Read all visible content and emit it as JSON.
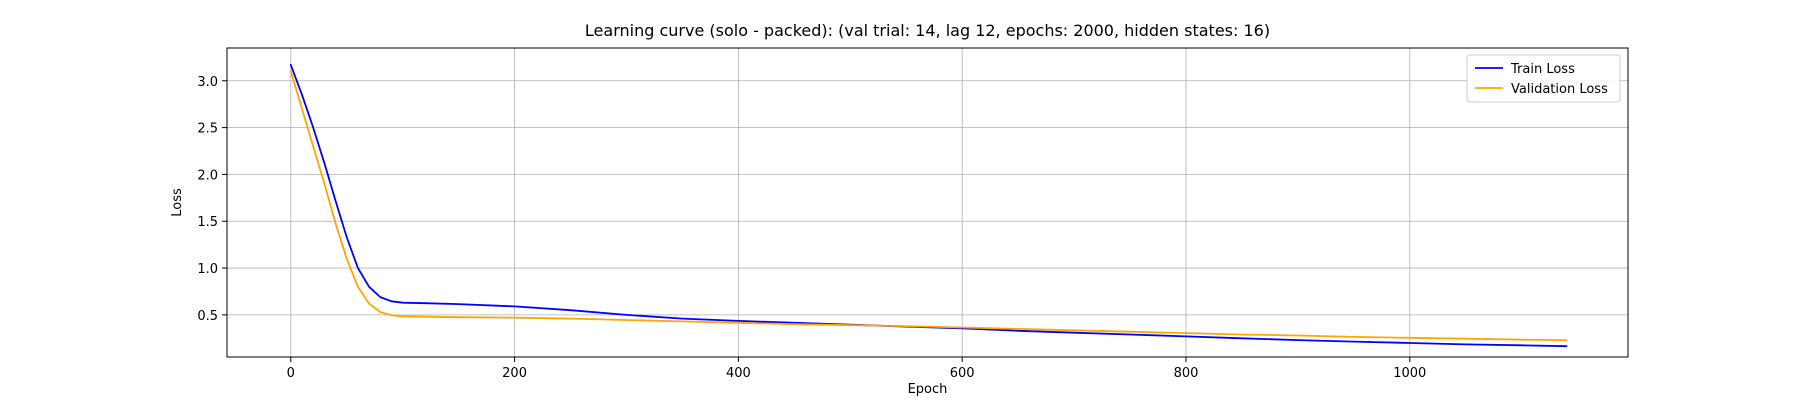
{
  "chart_data": {
    "type": "line",
    "title": "Learning curve (solo - packed): (val trial: 14, lag 12, epochs: 2000, hidden states: 16)",
    "xlabel": "Epoch",
    "ylabel": "Loss",
    "xlim": [
      -57,
      1195
    ],
    "ylim": [
      0.05,
      3.35
    ],
    "xticks": [
      0,
      200,
      400,
      600,
      800,
      1000
    ],
    "yticks": [
      0.5,
      1.0,
      1.5,
      2.0,
      2.5,
      3.0
    ],
    "xtick_labels": [
      "0",
      "200",
      "400",
      "600",
      "800",
      "1000"
    ],
    "ytick_labels": [
      "0.5",
      "1.0",
      "1.5",
      "2.0",
      "2.5",
      "3.0"
    ],
    "grid": true,
    "legend_position": "top-right",
    "series": [
      {
        "name": "Train Loss",
        "color": "#0000ff",
        "x": [
          0,
          10,
          20,
          30,
          40,
          50,
          60,
          70,
          80,
          90,
          100,
          120,
          150,
          200,
          250,
          300,
          350,
          400,
          450,
          500,
          550,
          600,
          650,
          700,
          750,
          800,
          850,
          900,
          950,
          1000,
          1050,
          1100,
          1140
        ],
        "y": [
          3.17,
          2.85,
          2.5,
          2.12,
          1.72,
          1.33,
          1.0,
          0.8,
          0.69,
          0.645,
          0.63,
          0.625,
          0.615,
          0.59,
          0.55,
          0.5,
          0.46,
          0.435,
          0.415,
          0.395,
          0.375,
          0.355,
          0.33,
          0.31,
          0.29,
          0.27,
          0.25,
          0.23,
          0.215,
          0.2,
          0.185,
          0.175,
          0.165
        ]
      },
      {
        "name": "Validation Loss",
        "color": "#ffa500",
        "x": [
          0,
          10,
          20,
          30,
          40,
          50,
          60,
          70,
          80,
          90,
          100,
          120,
          150,
          200,
          250,
          300,
          350,
          400,
          450,
          500,
          550,
          600,
          650,
          700,
          750,
          800,
          850,
          900,
          950,
          1000,
          1050,
          1100,
          1140
        ],
        "y": [
          3.1,
          2.7,
          2.3,
          1.9,
          1.48,
          1.1,
          0.8,
          0.62,
          0.53,
          0.495,
          0.485,
          0.48,
          0.475,
          0.47,
          0.46,
          0.445,
          0.43,
          0.415,
          0.4,
          0.39,
          0.38,
          0.365,
          0.35,
          0.335,
          0.32,
          0.305,
          0.29,
          0.28,
          0.265,
          0.255,
          0.245,
          0.235,
          0.23
        ]
      }
    ]
  }
}
